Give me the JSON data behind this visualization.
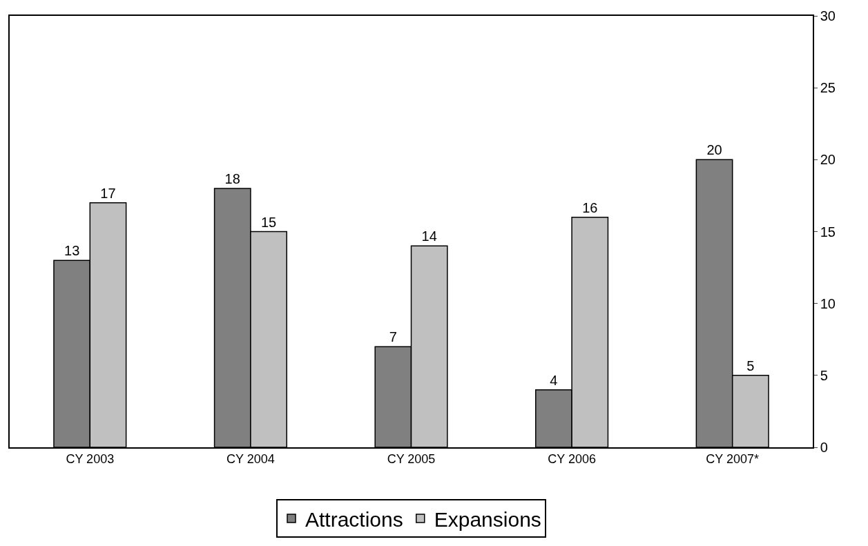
{
  "chart_data": {
    "type": "bar",
    "categories": [
      "CY 2003",
      "CY 2004",
      "CY 2005",
      "CY 2006",
      "CY 2007*"
    ],
    "series": [
      {
        "name": "Attractions",
        "color": "#808080",
        "values": [
          13,
          18,
          7,
          4,
          20
        ]
      },
      {
        "name": "Expansions",
        "color": "#c0c0c0",
        "values": [
          17,
          15,
          14,
          16,
          5
        ]
      }
    ],
    "ylim": [
      0,
      30
    ],
    "yticks": [
      0,
      5,
      10,
      15,
      20,
      25,
      30
    ],
    "data_labels": true,
    "grid": false,
    "legend": "bottom"
  }
}
